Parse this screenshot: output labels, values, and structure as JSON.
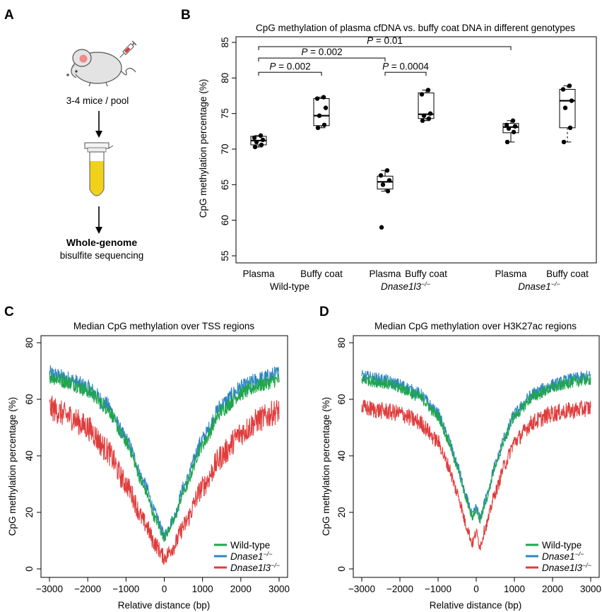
{
  "panels": {
    "a": {
      "label": "A",
      "mice_text": "3-4 mice / pool",
      "wgs_title": "Whole-genome",
      "wgs_sub": "bisulfite sequencing"
    },
    "b": {
      "label": "B"
    },
    "c": {
      "label": "C"
    },
    "d": {
      "label": "D"
    }
  },
  "chart_data": [
    {
      "id": "B",
      "type": "box",
      "title": "CpG methylation of plasma cfDNA vs. buffy coat DNA in different genotypes",
      "ylabel": "CpG methylation percentage (%)",
      "ylim": [
        55,
        85
      ],
      "yticks": [
        55,
        60,
        65,
        70,
        75,
        80,
        85
      ],
      "groups": [
        {
          "genotype": "Wild-type",
          "genotype_sup": "",
          "italic": false
        },
        {
          "genotype": "Dnase1l3",
          "genotype_sup": "−/−",
          "italic": true
        },
        {
          "genotype": "Dnase1",
          "genotype_sup": "−/−",
          "italic": true
        }
      ],
      "boxes": [
        {
          "group": 0,
          "sample": "Plasma",
          "points": [
            70.3,
            70.6,
            71.0,
            71.3,
            71.6,
            71.9
          ],
          "stats": {
            "min": 70.3,
            "q1": 70.6,
            "median": 71.2,
            "q3": 71.8,
            "max": 71.9
          }
        },
        {
          "group": 0,
          "sample": "Buffy coat",
          "points": [
            73.0,
            73.4,
            74.7,
            75.8,
            77.1,
            77.3
          ],
          "stats": {
            "min": 73.0,
            "q1": 73.3,
            "median": 74.7,
            "q3": 77.1,
            "max": 77.3
          }
        },
        {
          "group": 1,
          "sample": "Plasma",
          "points": [
            59.0,
            64.1,
            65.0,
            65.6,
            66.3,
            67.0
          ],
          "stats": {
            "min": 64.1,
            "q1": 64.4,
            "median": 65.4,
            "q3": 66.2,
            "max": 67.0,
            "outliers": [
              59.0
            ]
          }
        },
        {
          "group": 1,
          "sample": "Buffy coat",
          "points": [
            74.0,
            74.3,
            74.7,
            75.0,
            77.7,
            78.3
          ],
          "stats": {
            "min": 74.0,
            "q1": 74.3,
            "median": 74.9,
            "q3": 77.9,
            "max": 78.3
          }
        },
        {
          "group": 2,
          "sample": "Plasma",
          "points": [
            71.0,
            72.4,
            72.9,
            73.2,
            73.4,
            74.0
          ],
          "stats": {
            "min": 71.0,
            "q1": 72.3,
            "median": 73.1,
            "q3": 73.6,
            "max": 74.0
          }
        },
        {
          "group": 2,
          "sample": "Buffy coat",
          "points": [
            71.0,
            73.0,
            75.8,
            76.8,
            78.4,
            78.9
          ],
          "stats": {
            "min": 71.0,
            "q1": 73.0,
            "median": 76.8,
            "q3": 78.4,
            "max": 78.9
          }
        }
      ],
      "comparisons": [
        {
          "from": 0,
          "to": 1,
          "label_prefix": "P",
          "label_value": " = 0.002",
          "y": 80.8
        },
        {
          "from": 2,
          "to": 3,
          "label_prefix": "P",
          "label_value": " = 0.0004",
          "y": 80.8
        },
        {
          "from": 0,
          "to": 2,
          "label_prefix": "P",
          "label_value": " = 0.002",
          "y": 82.8
        },
        {
          "from": 0,
          "to": 4,
          "label_prefix": "P",
          "label_value": " = 0.01",
          "y": 84.4
        }
      ]
    },
    {
      "id": "C",
      "type": "line",
      "title": "Median CpG methylation over TSS regions",
      "xlabel": "Relative distance (bp)",
      "ylabel": "CpG methylation percentage (%)",
      "xlim": [
        -3000,
        3000
      ],
      "ylim": [
        0,
        80
      ],
      "xticks": [
        -3000,
        -2000,
        -1000,
        0,
        1000,
        2000,
        3000
      ],
      "yticks": [
        0,
        20,
        40,
        60,
        80
      ],
      "legend_position": "bottom-right",
      "series": [
        {
          "name": "Wild-type",
          "sup": "",
          "italic": false,
          "color": "#1fa64a",
          "noise": 2.5,
          "x": [
            -3000,
            -2500,
            -2000,
            -1500,
            -1000,
            -500,
            -250,
            0,
            250,
            500,
            1000,
            1500,
            2000,
            2500,
            3000
          ],
          "values": [
            68,
            66,
            63,
            57,
            45,
            28,
            18,
            11,
            17,
            27,
            44,
            56,
            62,
            65,
            67
          ]
        },
        {
          "name": "Dnase1",
          "sup": "−/−",
          "italic": true,
          "color": "#2e86c1",
          "noise": 3.0,
          "x": [
            -3000,
            -2500,
            -2000,
            -1500,
            -1000,
            -500,
            -250,
            0,
            250,
            500,
            1000,
            1500,
            2000,
            2500,
            3000
          ],
          "values": [
            69,
            67,
            64,
            58,
            46,
            30,
            20,
            12,
            18,
            29,
            46,
            58,
            64,
            67,
            69
          ]
        },
        {
          "name": "Dnase1l3",
          "sup": "−/−",
          "italic": true,
          "color": "#e03c3c",
          "noise": 4.5,
          "x": [
            -3000,
            -2500,
            -2000,
            -1500,
            -1000,
            -500,
            -250,
            0,
            250,
            500,
            1000,
            1500,
            2000,
            2500,
            3000
          ],
          "values": [
            57,
            54,
            50,
            42,
            30,
            16,
            9,
            4,
            8,
            15,
            29,
            40,
            48,
            53,
            56
          ]
        }
      ]
    },
    {
      "id": "D",
      "type": "line",
      "title": "Median CpG methylation over H3K27ac regions",
      "xlabel": "Relative distance (bp)",
      "ylabel": "CpG methylation percentage (%)",
      "xlim": [
        -3000,
        3000
      ],
      "ylim": [
        0,
        80
      ],
      "xticks": [
        -3000,
        -2000,
        -1000,
        0,
        1000,
        2000,
        3000
      ],
      "yticks": [
        0,
        20,
        40,
        60,
        80
      ],
      "legend_position": "bottom-right",
      "series": [
        {
          "name": "Wild-type",
          "sup": "",
          "italic": false,
          "color": "#1fa64a",
          "noise": 2.0,
          "x": [
            -3000,
            -2500,
            -2000,
            -1500,
            -1000,
            -750,
            -500,
            -250,
            -100,
            0,
            100,
            250,
            500,
            750,
            1000,
            1500,
            2000,
            2500,
            3000
          ],
          "values": [
            67,
            66,
            64,
            61,
            54,
            46,
            36,
            24,
            18,
            21,
            17,
            24,
            36,
            46,
            54,
            61,
            64,
            66,
            67
          ]
        },
        {
          "name": "Dnase1",
          "sup": "−/−",
          "italic": true,
          "color": "#2e86c1",
          "noise": 2.3,
          "x": [
            -3000,
            -2500,
            -2000,
            -1500,
            -1000,
            -750,
            -500,
            -250,
            -100,
            0,
            100,
            250,
            500,
            750,
            1000,
            1500,
            2000,
            2500,
            3000
          ],
          "values": [
            68,
            67,
            65,
            62,
            55,
            47,
            37,
            25,
            19,
            22,
            18,
            25,
            37,
            47,
            55,
            62,
            65,
            67,
            68
          ]
        },
        {
          "name": "Dnase1l3",
          "sup": "−/−",
          "italic": true,
          "color": "#e03c3c",
          "noise": 3.0,
          "x": [
            -3000,
            -2500,
            -2000,
            -1500,
            -1000,
            -750,
            -500,
            -250,
            -100,
            0,
            100,
            250,
            500,
            750,
            1000,
            1500,
            2000,
            2500,
            3000
          ],
          "values": [
            57,
            56,
            55,
            52,
            45,
            37,
            27,
            15,
            9,
            13,
            8,
            15,
            27,
            37,
            45,
            52,
            55,
            56,
            57
          ]
        }
      ]
    }
  ]
}
